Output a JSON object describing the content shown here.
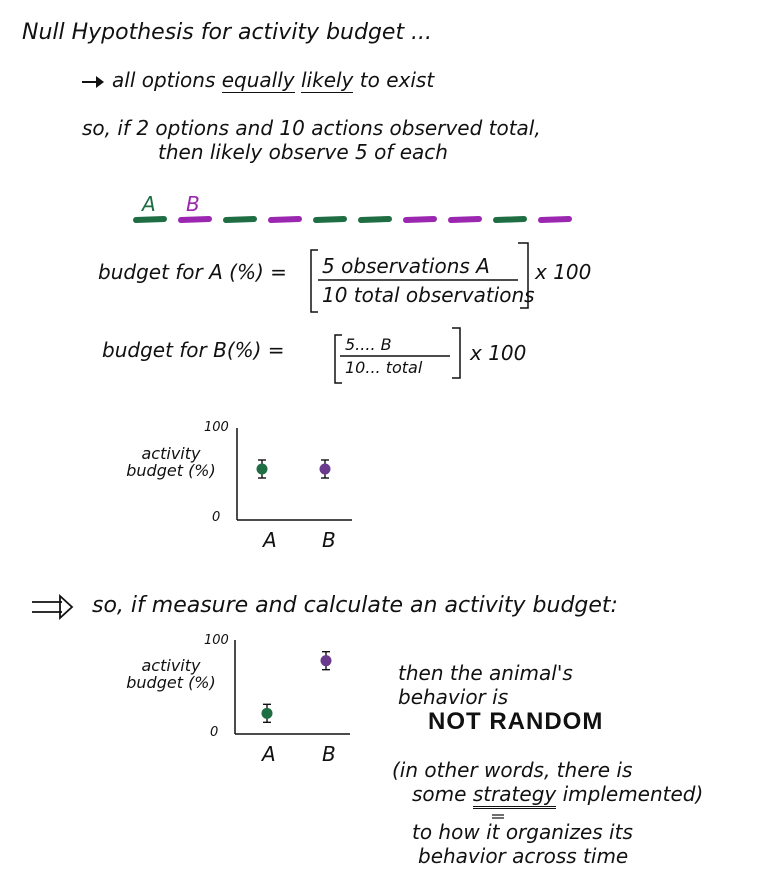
{
  "title": "Null Hypothesis for activity budget ...",
  "point1": "all options equally likely to exist",
  "point1_parts": {
    "pre": "all options ",
    "u1": "equally",
    "mid": " ",
    "u2": "likely",
    "post": " to exist"
  },
  "so_line1": "so, if 2 options and 10 actions observed total,",
  "so_line2": "then likely observe 5 of each",
  "labels": {
    "a": "A",
    "b": "B"
  },
  "colors": {
    "a": "#1f6e43",
    "b": "#9b27b0",
    "b_dot": "#6a3a8c",
    "ink": "#111111"
  },
  "sequence": [
    "A",
    "B",
    "A",
    "B",
    "A",
    "A",
    "B",
    "B",
    "A",
    "B"
  ],
  "formula_a": {
    "lhs": "budget for A (%)",
    "num": "5 observations A",
    "den": "10 total observations",
    "mult": "x 100"
  },
  "formula_b": {
    "lhs": "budget for B(%)",
    "num": "5.... B",
    "den": "10... total",
    "mult": "x 100"
  },
  "conclusion_intro": "so, if measure and calculate an activity budget:",
  "then_line1": "then the animal's",
  "then_line2": "behavior is",
  "not_random": "NOT RANDOM",
  "words_line1": "(in other words, there is",
  "words_line2_pre": "some ",
  "words_line2_u": "strategy",
  "words_line2_post": " implemented)",
  "words_line3": "to how it organizes its",
  "words_line4": "behavior across time",
  "chart_data": [
    {
      "type": "scatter",
      "categories": [
        "A",
        "B"
      ],
      "series": [
        {
          "values": [
            50,
            50
          ]
        }
      ],
      "ylabel": "activity budget (%)",
      "yticks": [
        "100",
        "0"
      ],
      "ylim": [
        0,
        100
      ],
      "error_bars": true
    },
    {
      "type": "scatter",
      "categories": [
        "A",
        "B"
      ],
      "series": [
        {
          "values": [
            22,
            78
          ]
        }
      ],
      "ylabel": "activity budget (%)",
      "yticks": [
        "100",
        "0"
      ],
      "ylim": [
        0,
        100
      ],
      "error_bars": true
    }
  ]
}
